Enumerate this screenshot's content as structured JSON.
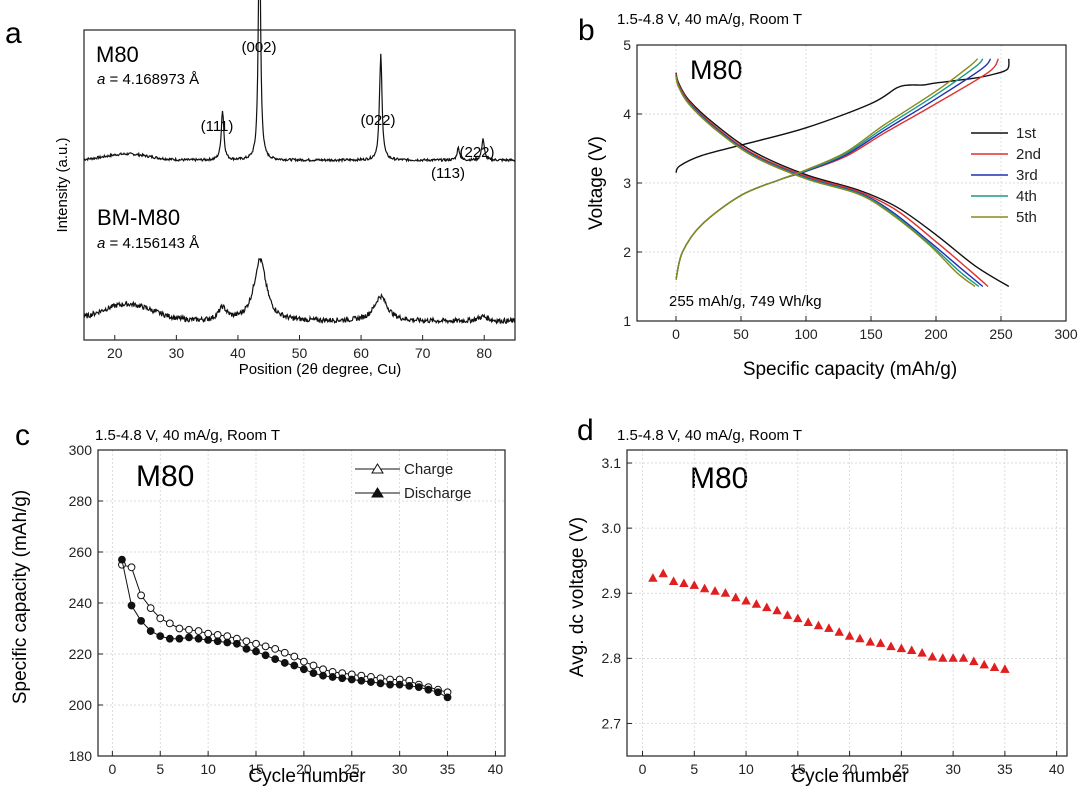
{
  "chart_data": [
    {
      "panel_label": "a",
      "type": "line",
      "xlabel": "Position (2θ degree, Cu)",
      "ylabel": "Intensity (a.u.)",
      "xlim": [
        15,
        85
      ],
      "xticks": [
        20,
        30,
        40,
        50,
        60,
        70,
        80
      ],
      "grid": false,
      "series": [
        {
          "name": "M80",
          "lattice_label": "a",
          "lattice_value": " = 4.168973 Å",
          "baseline": 0.58,
          "noise": 0.004,
          "peaks": [
            {
              "x": 37.5,
              "h": 0.16,
              "w": 0.25
            },
            {
              "x": 43.5,
              "h": 0.78,
              "w": 0.22
            },
            {
              "x": 63.2,
              "h": 0.34,
              "w": 0.25
            },
            {
              "x": 75.8,
              "h": 0.04,
              "w": 0.25
            },
            {
              "x": 79.8,
              "h": 0.07,
              "w": 0.25
            }
          ],
          "humps": [
            {
              "x": 22,
              "h": 0.02,
              "w": 5
            }
          ]
        },
        {
          "name": "BM-M80",
          "lattice_label": "a",
          "lattice_value": " = 4.156143 Å",
          "baseline": 0.06,
          "noise": 0.008,
          "peaks": [
            {
              "x": 37.5,
              "h": 0.04,
              "w": 0.8
            },
            {
              "x": 43.6,
              "h": 0.2,
              "w": 1.2
            },
            {
              "x": 63.2,
              "h": 0.08,
              "w": 1.3
            },
            {
              "x": 79.8,
              "h": 0.015,
              "w": 1
            }
          ],
          "humps": [
            {
              "x": 22,
              "h": 0.055,
              "w": 6
            }
          ]
        }
      ],
      "annotations": [
        "(002)",
        "(111)",
        "(022)",
        "(113)",
        "(222)"
      ]
    },
    {
      "panel_label": "b",
      "type": "line",
      "subtitle": "1.5-4.8 V, 40 mA/g, Room T",
      "sample": "M80",
      "xlabel": "Specific capacity (mAh/g)",
      "ylabel": "Voltage (V)",
      "xlim": [
        -30,
        300
      ],
      "ylim": [
        1,
        5
      ],
      "xticks": [
        0,
        50,
        100,
        150,
        200,
        250,
        300
      ],
      "yticks": [
        1,
        2,
        3,
        4,
        5
      ],
      "grid": true,
      "legend_position": "right",
      "annotation": "255 mAh/g, 749 Wh/kg",
      "series": [
        {
          "name": "1st",
          "color": "#111111",
          "charge": [
            [
              0,
              3.15
            ],
            [
              3,
              3.25
            ],
            [
              20,
              3.4
            ],
            [
              50,
              3.55
            ],
            [
              100,
              3.8
            ],
            [
              150,
              4.15
            ],
            [
              170,
              4.38
            ],
            [
              180,
              4.42
            ],
            [
              190,
              4.42
            ],
            [
              200,
              4.45
            ],
            [
              230,
              4.52
            ],
            [
              245,
              4.58
            ],
            [
              255,
              4.65
            ],
            [
              256,
              4.8
            ]
          ],
          "discharge": [
            [
              0,
              4.6
            ],
            [
              2,
              4.45
            ],
            [
              10,
              4.2
            ],
            [
              30,
              3.85
            ],
            [
              60,
              3.45
            ],
            [
              100,
              3.12
            ],
            [
              140,
              2.9
            ],
            [
              170,
              2.65
            ],
            [
              200,
              2.25
            ],
            [
              230,
              1.8
            ],
            [
              256,
              1.5
            ]
          ]
        },
        {
          "name": "2nd",
          "color": "#e03030",
          "charge": [
            [
              0,
              1.6
            ],
            [
              5,
              2.0
            ],
            [
              20,
              2.4
            ],
            [
              50,
              2.82
            ],
            [
              80,
              3.05
            ],
            [
              100,
              3.17
            ],
            [
              130,
              3.38
            ],
            [
              160,
              3.72
            ],
            [
              200,
              4.15
            ],
            [
              240,
              4.6
            ],
            [
              248,
              4.8
            ]
          ],
          "discharge": [
            [
              0,
              4.58
            ],
            [
              2,
              4.43
            ],
            [
              10,
              4.18
            ],
            [
              30,
              3.82
            ],
            [
              60,
              3.42
            ],
            [
              100,
              3.1
            ],
            [
              140,
              2.88
            ],
            [
              170,
              2.6
            ],
            [
              200,
              2.15
            ],
            [
              225,
              1.75
            ],
            [
              240,
              1.5
            ]
          ]
        },
        {
          "name": "3rd",
          "color": "#2030b0",
          "charge": [
            [
              0,
              1.6
            ],
            [
              5,
              2.0
            ],
            [
              20,
              2.4
            ],
            [
              50,
              2.82
            ],
            [
              80,
              3.05
            ],
            [
              100,
              3.17
            ],
            [
              130,
              3.4
            ],
            [
              160,
              3.76
            ],
            [
              200,
              4.22
            ],
            [
              235,
              4.65
            ],
            [
              242,
              4.8
            ]
          ],
          "discharge": [
            [
              0,
              4.56
            ],
            [
              2,
              4.41
            ],
            [
              10,
              4.16
            ],
            [
              30,
              3.8
            ],
            [
              60,
              3.4
            ],
            [
              100,
              3.08
            ],
            [
              140,
              2.86
            ],
            [
              165,
              2.6
            ],
            [
              195,
              2.15
            ],
            [
              220,
              1.75
            ],
            [
              236,
              1.5
            ]
          ]
        },
        {
          "name": "4th",
          "color": "#1a9a8a",
          "charge": [
            [
              0,
              1.6
            ],
            [
              5,
              2.0
            ],
            [
              20,
              2.4
            ],
            [
              50,
              2.82
            ],
            [
              80,
              3.05
            ],
            [
              100,
              3.18
            ],
            [
              130,
              3.42
            ],
            [
              160,
              3.8
            ],
            [
              200,
              4.28
            ],
            [
              230,
              4.68
            ],
            [
              236,
              4.8
            ]
          ],
          "discharge": [
            [
              0,
              4.55
            ],
            [
              2,
              4.4
            ],
            [
              10,
              4.15
            ],
            [
              30,
              3.79
            ],
            [
              60,
              3.39
            ],
            [
              100,
              3.07
            ],
            [
              140,
              2.85
            ],
            [
              165,
              2.58
            ],
            [
              195,
              2.12
            ],
            [
              218,
              1.72
            ],
            [
              233,
              1.5
            ]
          ]
        },
        {
          "name": "5th",
          "color": "#8a8a1a",
          "charge": [
            [
              0,
              1.6
            ],
            [
              5,
              2.0
            ],
            [
              20,
              2.4
            ],
            [
              50,
              2.82
            ],
            [
              80,
              3.05
            ],
            [
              100,
              3.19
            ],
            [
              130,
              3.44
            ],
            [
              160,
              3.84
            ],
            [
              200,
              4.33
            ],
            [
              225,
              4.68
            ],
            [
              232,
              4.8
            ]
          ],
          "discharge": [
            [
              0,
              4.54
            ],
            [
              2,
              4.39
            ],
            [
              10,
              4.14
            ],
            [
              30,
              3.78
            ],
            [
              60,
              3.38
            ],
            [
              100,
              3.06
            ],
            [
              140,
              2.84
            ],
            [
              165,
              2.56
            ],
            [
              195,
              2.1
            ],
            [
              216,
              1.7
            ],
            [
              230,
              1.5
            ]
          ]
        }
      ]
    },
    {
      "panel_label": "c",
      "type": "scatter",
      "subtitle": "1.5-4.8 V, 40 mA/g, Room T",
      "sample": "M80",
      "xlabel": "Cycle number",
      "ylabel": "Specific capacity (mAh/g)",
      "xlim": [
        -1.5,
        41
      ],
      "ylim": [
        180,
        300
      ],
      "xticks": [
        0,
        5,
        10,
        15,
        20,
        25,
        30,
        35,
        40
      ],
      "yticks": [
        180,
        200,
        220,
        240,
        260,
        280,
        300
      ],
      "grid": true,
      "legend_position": "top-right",
      "x": [
        1,
        2,
        3,
        4,
        5,
        6,
        7,
        8,
        9,
        10,
        11,
        12,
        13,
        14,
        15,
        16,
        17,
        18,
        19,
        20,
        21,
        22,
        23,
        24,
        25,
        26,
        27,
        28,
        29,
        30,
        31,
        32,
        33,
        34,
        35
      ],
      "series": [
        {
          "name": "Charge",
          "marker": "open",
          "values": [
            255,
            254,
            243,
            238,
            234,
            232,
            230,
            229.5,
            229,
            228,
            227.5,
            227,
            226,
            225,
            224,
            223,
            222,
            220.5,
            219,
            217,
            215.5,
            214,
            213,
            212.5,
            212,
            211.5,
            211,
            210.5,
            210,
            210,
            209.5,
            208,
            207,
            206,
            205
          ]
        },
        {
          "name": "Discharge",
          "marker": "filled",
          "values": [
            257,
            239,
            233,
            229,
            227,
            226,
            226,
            226.5,
            226,
            225.5,
            225,
            224.5,
            224,
            222,
            221,
            219.5,
            218,
            216.5,
            215.5,
            214,
            212.5,
            211.5,
            211,
            210.5,
            210,
            209.5,
            209,
            208.5,
            208,
            208,
            207.5,
            207,
            206,
            205,
            203
          ]
        }
      ]
    },
    {
      "panel_label": "d",
      "type": "scatter",
      "subtitle": "1.5-4.8 V, 40 mA/g, Room T",
      "sample": "M80",
      "xlabel": "Cycle number",
      "ylabel": "Avg. dc voltage (V)",
      "xlim": [
        -1.5,
        41
      ],
      "ylim": [
        2.65,
        3.12
      ],
      "xticks": [
        0,
        5,
        10,
        15,
        20,
        25,
        30,
        35,
        40
      ],
      "yticks": [
        2.7,
        2.8,
        2.9,
        3.0,
        3.1
      ],
      "grid": true,
      "x": [
        1,
        2,
        3,
        4,
        5,
        6,
        7,
        8,
        9,
        10,
        11,
        12,
        13,
        14,
        15,
        16,
        17,
        18,
        19,
        20,
        21,
        22,
        23,
        24,
        25,
        26,
        27,
        28,
        29,
        30,
        31,
        32,
        33,
        34,
        35
      ],
      "series": [
        {
          "color": "#e02020",
          "marker": "triangle",
          "values": [
            2.923,
            2.93,
            2.918,
            2.915,
            2.912,
            2.907,
            2.903,
            2.9,
            2.893,
            2.888,
            2.883,
            2.878,
            2.873,
            2.866,
            2.861,
            2.855,
            2.85,
            2.846,
            2.84,
            2.834,
            2.83,
            2.825,
            2.823,
            2.818,
            2.815,
            2.812,
            2.808,
            2.802,
            2.8,
            2.8,
            2.8,
            2.795,
            2.79,
            2.786,
            2.783
          ]
        }
      ]
    }
  ]
}
